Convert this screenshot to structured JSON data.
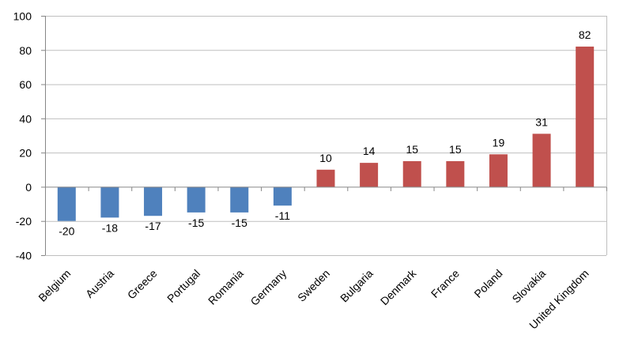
{
  "chart_data": {
    "type": "bar",
    "title": "",
    "xlabel": "",
    "ylabel": "",
    "ylim": [
      -40,
      100
    ],
    "yticks": [
      -40,
      -20,
      0,
      20,
      40,
      60,
      80,
      100
    ],
    "ytick_labels": [
      "-40",
      "-20",
      "0",
      "20",
      "40",
      "60",
      "80",
      "100"
    ],
    "grid": true,
    "legend": "none",
    "categories": [
      "Belgium",
      "Austria",
      "Greece",
      "Portugal",
      "Romania",
      "Germany",
      "Sweden",
      "Bulgaria",
      "Denmark",
      "France",
      "Poland",
      "Slovakia",
      "United Kingdom"
    ],
    "values": [
      -20,
      -18,
      -17,
      -15,
      -15,
      -11,
      10,
      14,
      15,
      15,
      19,
      31,
      82
    ],
    "value_labels": [
      "-20",
      "-18",
      "-17",
      "-15",
      "-15",
      "-11",
      "10",
      "14",
      "15",
      "15",
      "19",
      "31",
      "82"
    ],
    "colors": {
      "negative": "#4f81bd",
      "positive": "#c0504d",
      "grid": "#bfbfbf",
      "axis": "#868686"
    }
  }
}
